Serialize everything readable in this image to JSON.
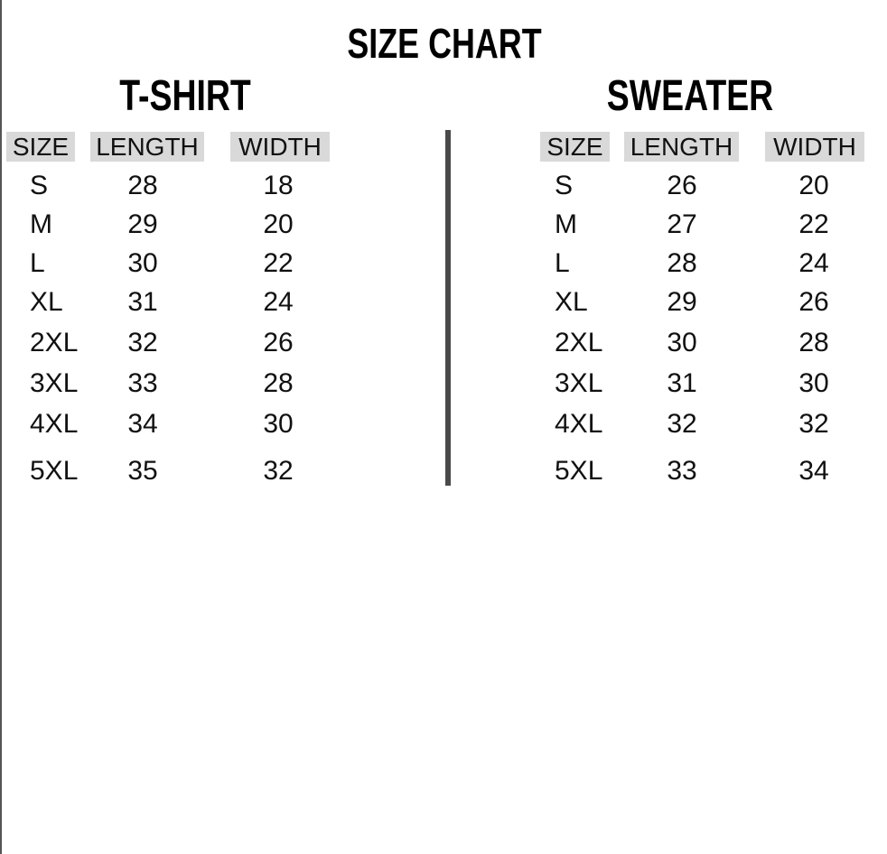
{
  "title": "SIZE CHART",
  "colors": {
    "header_bg": "#d9d9d9",
    "divider": "#4a4a4a",
    "text": "#111111"
  },
  "tshirt": {
    "title": "T-SHIRT",
    "headers": [
      "SIZE",
      "LENGTH",
      "WIDTH"
    ],
    "rows": [
      [
        "S",
        "28",
        "18"
      ],
      [
        "M",
        "29",
        "20"
      ],
      [
        "L",
        "30",
        "22"
      ],
      [
        "XL",
        "31",
        "24"
      ],
      [
        "2XL",
        "32",
        "26"
      ],
      [
        "3XL",
        "33",
        "28"
      ],
      [
        "4XL",
        "34",
        "30"
      ],
      [
        "5XL",
        "35",
        "32"
      ]
    ]
  },
  "sweater": {
    "title": "SWEATER",
    "headers": [
      "SIZE",
      "LENGTH",
      "WIDTH"
    ],
    "rows": [
      [
        "S",
        "26",
        "20"
      ],
      [
        "M",
        "27",
        "22"
      ],
      [
        "L",
        "28",
        "24"
      ],
      [
        "XL",
        "29",
        "26"
      ],
      [
        "2XL",
        "30",
        "28"
      ],
      [
        "3XL",
        "31",
        "30"
      ],
      [
        "4XL",
        "32",
        "32"
      ],
      [
        "5XL",
        "33",
        "34"
      ]
    ]
  }
}
